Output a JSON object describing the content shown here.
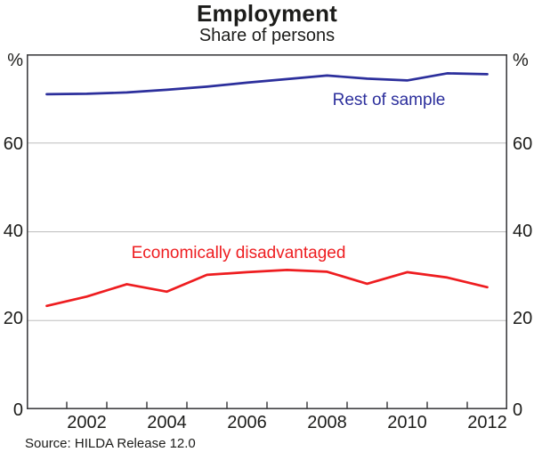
{
  "header": {
    "title": "Employment",
    "subtitle": "Share of persons"
  },
  "chart_data": {
    "type": "line",
    "title": "Employment",
    "subtitle": "Share of persons",
    "x": [
      2001,
      2002,
      2003,
      2004,
      2005,
      2006,
      2007,
      2008,
      2009,
      2010,
      2011,
      2012
    ],
    "series": [
      {
        "name": "Rest of sample",
        "color": "#2c2f9c",
        "values": [
          71.0,
          71.1,
          71.4,
          72.0,
          72.7,
          73.6,
          74.4,
          75.2,
          74.5,
          74.1,
          75.7,
          75.5
        ]
      },
      {
        "name": "Economically disadvantaged",
        "color": "#ee1d20",
        "values": [
          23.3,
          25.4,
          28.2,
          26.5,
          30.3,
          30.9,
          31.4,
          31.0,
          28.3,
          30.9,
          29.7,
          27.5
        ]
      }
    ],
    "ylim": [
      0,
      80
    ],
    "yticks": [
      0,
      20,
      40,
      60
    ],
    "y_unit": "%",
    "x_tick_labels": [
      "2002",
      "2004",
      "2006",
      "2008",
      "2010",
      "2012"
    ],
    "grid": "horizontal",
    "legend_position": "inline-annotations"
  },
  "axes": {
    "left_labels": [
      "%",
      "60",
      "40",
      "20",
      "0"
    ],
    "right_labels": [
      "%",
      "60",
      "40",
      "20",
      "0"
    ],
    "x_labels": [
      "2002",
      "2004",
      "2006",
      "2008",
      "2010",
      "2012"
    ]
  },
  "footer": {
    "source": "Source: HILDA Release 12.0"
  },
  "colors": {
    "blue_series": "#2c2f9c",
    "red_series": "#ee1d20",
    "grid": "#bdbdbd",
    "frame": "#404042",
    "text": "#1c1c1a"
  }
}
